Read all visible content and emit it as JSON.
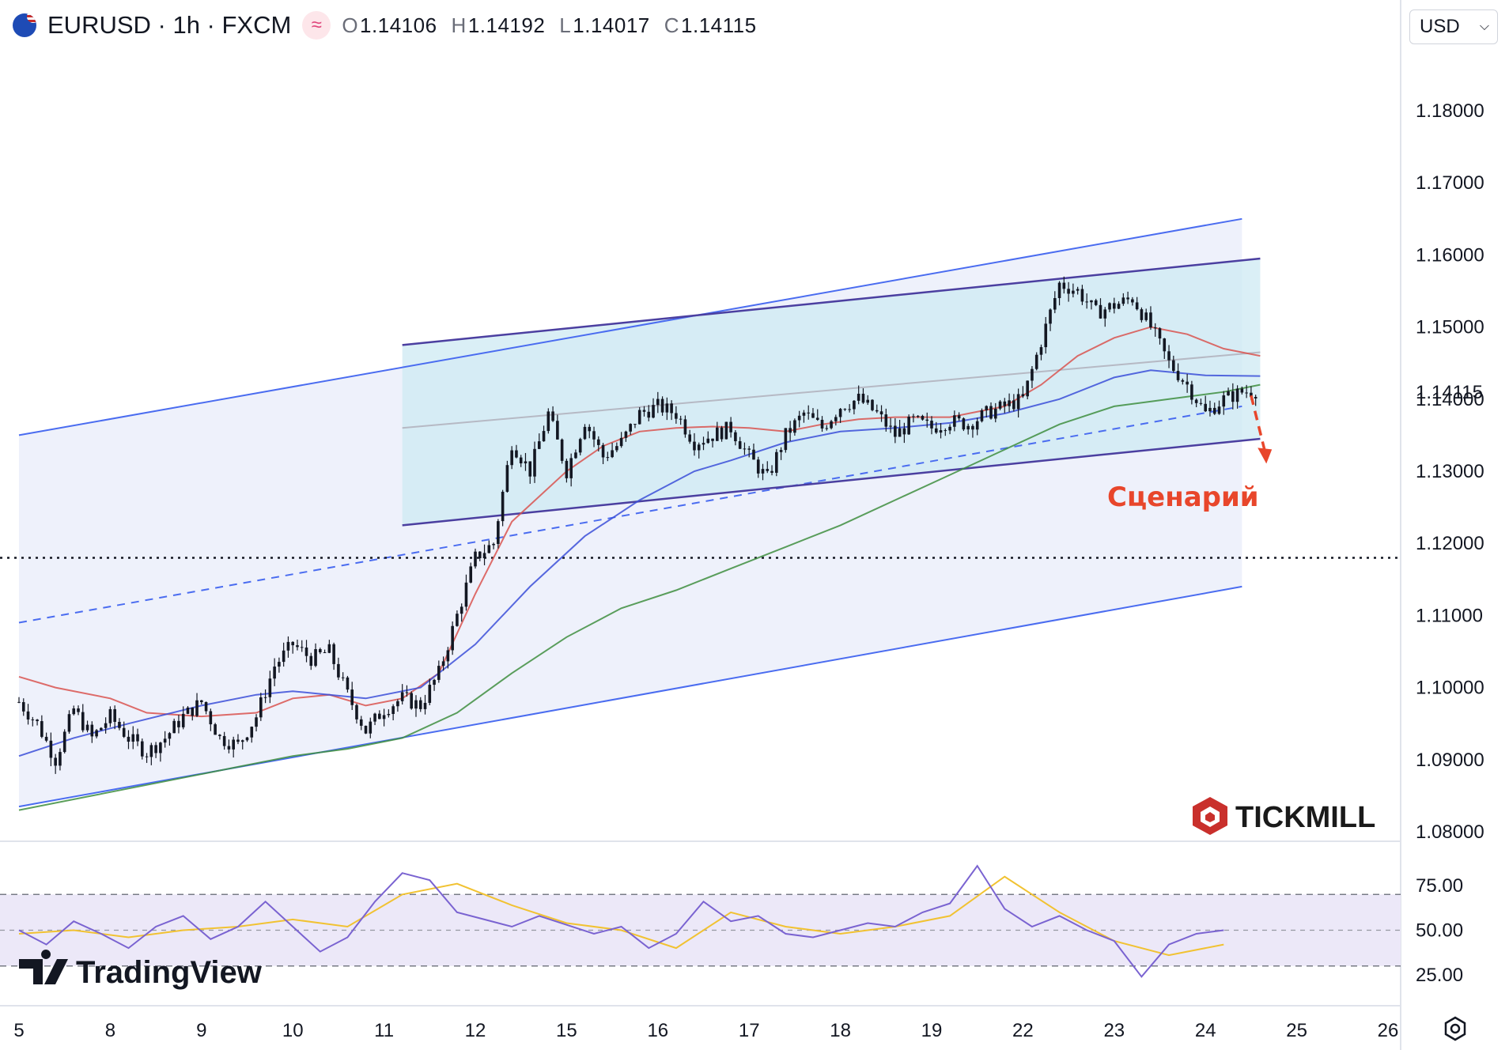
{
  "header": {
    "symbol": "EURUSD · 1h · FXCM",
    "open_label": "O",
    "open": "1.14106",
    "high_label": "H",
    "high": "1.14192",
    "low_label": "L",
    "low": "1.14017",
    "close_label": "C",
    "close": "1.14115",
    "wave_icon": "≈"
  },
  "currency_select": {
    "value": "USD"
  },
  "brands": {
    "tickmill": "TICKMILL",
    "tradingview": "TradingView"
  },
  "annotation": {
    "scenario": "Сценарий"
  },
  "colors": {
    "ma_red": "#d9534f",
    "ma_blue": "#3b4fd8",
    "ma_green": "#3e8e3e",
    "channel": "#4a6cf0",
    "inner_channel": "#4b3fa0",
    "rsi": "#7a63d1",
    "rsi_ma": "#f1c232",
    "arrow": "#e8462b",
    "channel_fill": "#cde9f3"
  },
  "chart_data": [
    {
      "type": "line",
      "description_series": "candlestick price with moving averages",
      "x": [
        "5",
        "8",
        "9",
        "10",
        "11",
        "12",
        "15",
        "16",
        "17",
        "18",
        "19",
        "22",
        "23",
        "24",
        "25",
        "26"
      ],
      "y_axis_ticks": [
        "1.18000",
        "1.17000",
        "1.16000",
        "1.15000",
        "1.14000",
        "1.13000",
        "1.12000",
        "1.11000",
        "1.10000",
        "1.09000",
        "1.08000"
      ],
      "ylim": [
        1.0785,
        1.1945
      ],
      "last_price": "1.14115",
      "horizontal_level": 1.118,
      "close_path": [
        [
          0.0,
          1.098
        ],
        [
          0.2,
          1.095
        ],
        [
          0.4,
          1.09
        ],
        [
          0.6,
          1.097
        ],
        [
          0.8,
          1.093
        ],
        [
          1.0,
          1.096
        ],
        [
          1.2,
          1.093
        ],
        [
          1.4,
          1.091
        ],
        [
          1.6,
          1.093
        ],
        [
          1.8,
          1.096
        ],
        [
          2.0,
          1.098
        ],
        [
          2.2,
          1.093
        ],
        [
          2.4,
          1.092
        ],
        [
          2.6,
          1.096
        ],
        [
          2.8,
          1.103
        ],
        [
          3.0,
          1.106
        ],
        [
          3.2,
          1.104
        ],
        [
          3.4,
          1.105
        ],
        [
          3.6,
          1.099
        ],
        [
          3.8,
          1.094
        ],
        [
          4.0,
          1.097
        ],
        [
          4.2,
          1.0985
        ],
        [
          4.4,
          1.0975
        ],
        [
          4.6,
          1.102
        ],
        [
          4.8,
          1.11
        ],
        [
          5.0,
          1.118
        ],
        [
          5.2,
          1.12
        ],
        [
          5.4,
          1.134
        ],
        [
          5.6,
          1.13
        ],
        [
          5.8,
          1.138
        ],
        [
          6.0,
          1.13
        ],
        [
          6.2,
          1.137
        ],
        [
          6.4,
          1.132
        ],
        [
          6.6,
          1.134
        ],
        [
          6.8,
          1.138
        ],
        [
          7.0,
          1.139
        ],
        [
          7.2,
          1.138
        ],
        [
          7.4,
          1.134
        ],
        [
          7.6,
          1.135
        ],
        [
          7.8,
          1.136
        ],
        [
          8.0,
          1.132
        ],
        [
          8.2,
          1.129
        ],
        [
          8.4,
          1.135
        ],
        [
          8.6,
          1.138
        ],
        [
          8.8,
          1.136
        ],
        [
          9.0,
          1.139
        ],
        [
          9.2,
          1.14
        ],
        [
          9.4,
          1.138
        ],
        [
          9.6,
          1.135
        ],
        [
          9.8,
          1.137
        ],
        [
          10.0,
          1.136
        ],
        [
          10.2,
          1.137
        ],
        [
          10.4,
          1.1365
        ],
        [
          10.6,
          1.138
        ],
        [
          10.8,
          1.139
        ],
        [
          11.0,
          1.14
        ],
        [
          11.2,
          1.148
        ],
        [
          11.4,
          1.156
        ],
        [
          11.6,
          1.155
        ],
        [
          11.8,
          1.152
        ],
        [
          12.0,
          1.153
        ],
        [
          12.2,
          1.154
        ],
        [
          12.4,
          1.15
        ],
        [
          12.6,
          1.145
        ],
        [
          12.8,
          1.142
        ],
        [
          13.0,
          1.138
        ],
        [
          13.2,
          1.14
        ],
        [
          13.4,
          1.141
        ],
        [
          13.6,
          1.1412
        ]
      ],
      "moving_averages": [
        {
          "color": "#d9534f",
          "points": [
            [
              0.0,
              1.1015
            ],
            [
              0.4,
              1.1
            ],
            [
              1.0,
              1.0985
            ],
            [
              1.4,
              1.0965
            ],
            [
              2.0,
              1.096
            ],
            [
              2.6,
              1.0965
            ],
            [
              3.0,
              1.0985
            ],
            [
              3.4,
              1.099
            ],
            [
              3.8,
              1.0975
            ],
            [
              4.2,
              1.0985
            ],
            [
              4.6,
              1.102
            ],
            [
              5.0,
              1.113
            ],
            [
              5.4,
              1.123
            ],
            [
              6.0,
              1.13
            ],
            [
              6.4,
              1.1335
            ],
            [
              6.8,
              1.1355
            ],
            [
              7.2,
              1.136
            ],
            [
              7.6,
              1.1362
            ],
            [
              8.0,
              1.136
            ],
            [
              8.4,
              1.1355
            ],
            [
              8.8,
              1.1365
            ],
            [
              9.2,
              1.1372
            ],
            [
              9.6,
              1.1375
            ],
            [
              10.2,
              1.1375
            ],
            [
              10.8,
              1.139
            ],
            [
              11.2,
              1.142
            ],
            [
              11.6,
              1.146
            ],
            [
              12.0,
              1.1485
            ],
            [
              12.4,
              1.15
            ],
            [
              12.8,
              1.149
            ],
            [
              13.2,
              1.147
            ],
            [
              13.6,
              1.146
            ]
          ]
        },
        {
          "color": "#3b4fd8",
          "points": [
            [
              0.0,
              1.0905
            ],
            [
              0.6,
              1.093
            ],
            [
              1.2,
              1.095
            ],
            [
              2.0,
              1.0975
            ],
            [
              2.6,
              1.099
            ],
            [
              3.0,
              1.0995
            ],
            [
              3.4,
              1.099
            ],
            [
              3.8,
              1.0985
            ],
            [
              4.4,
              1.1
            ],
            [
              5.0,
              1.106
            ],
            [
              5.6,
              1.114
            ],
            [
              6.2,
              1.121
            ],
            [
              6.8,
              1.126
            ],
            [
              7.4,
              1.13
            ],
            [
              7.8,
              1.1315
            ],
            [
              8.4,
              1.134
            ],
            [
              9.0,
              1.1355
            ],
            [
              9.6,
              1.136
            ],
            [
              10.2,
              1.1367
            ],
            [
              10.8,
              1.138
            ],
            [
              11.4,
              1.14
            ],
            [
              12.0,
              1.143
            ],
            [
              12.4,
              1.144
            ],
            [
              13.0,
              1.1433
            ],
            [
              13.6,
              1.1432
            ]
          ]
        },
        {
          "color": "#3e8e3e",
          "points": [
            [
              0.0,
              1.083
            ],
            [
              0.8,
              1.085
            ],
            [
              1.6,
              1.087
            ],
            [
              2.4,
              1.089
            ],
            [
              3.0,
              1.0905
            ],
            [
              3.6,
              1.0915
            ],
            [
              4.2,
              1.093
            ],
            [
              4.8,
              1.0965
            ],
            [
              5.4,
              1.102
            ],
            [
              6.0,
              1.107
            ],
            [
              6.6,
              1.111
            ],
            [
              7.2,
              1.1135
            ],
            [
              7.8,
              1.1165
            ],
            [
              8.4,
              1.1195
            ],
            [
              9.0,
              1.1225
            ],
            [
              9.6,
              1.126
            ],
            [
              10.2,
              1.1295
            ],
            [
              10.8,
              1.133
            ],
            [
              11.4,
              1.1365
            ],
            [
              12.0,
              1.139
            ],
            [
              12.6,
              1.14
            ],
            [
              13.2,
              1.141
            ],
            [
              13.6,
              1.142
            ]
          ]
        }
      ],
      "outer_channel": {
        "upper": [
          [
            0.0,
            1.135
          ],
          [
            13.4,
            1.165
          ]
        ],
        "mid": [
          [
            0.0,
            1.109
          ],
          [
            13.4,
            1.139
          ]
        ],
        "lower": [
          [
            0.0,
            1.0835
          ],
          [
            13.4,
            1.114
          ]
        ]
      },
      "inner_channel": {
        "upper": [
          [
            4.2,
            1.1475
          ],
          [
            13.6,
            1.1595
          ]
        ],
        "mid": [
          [
            4.2,
            1.136
          ],
          [
            13.6,
            1.1465
          ]
        ],
        "lower": [
          [
            4.2,
            1.1225
          ],
          [
            13.6,
            1.1345
          ]
        ]
      },
      "scenario_arrow": [
        [
          13.5,
          1.1405
        ],
        [
          13.65,
          1.1315
        ]
      ]
    },
    {
      "type": "line",
      "description_series": "RSI oscillator",
      "y_axis_ticks": [
        "75.00",
        "50.00",
        "25.00"
      ],
      "ylim": [
        20,
        90
      ],
      "band": [
        30,
        70
      ],
      "rsi": [
        [
          0.0,
          50
        ],
        [
          0.3,
          42
        ],
        [
          0.6,
          55
        ],
        [
          0.9,
          48
        ],
        [
          1.2,
          40
        ],
        [
          1.5,
          52
        ],
        [
          1.8,
          58
        ],
        [
          2.1,
          45
        ],
        [
          2.4,
          52
        ],
        [
          2.7,
          66
        ],
        [
          3.0,
          52
        ],
        [
          3.3,
          38
        ],
        [
          3.6,
          46
        ],
        [
          3.9,
          66
        ],
        [
          4.2,
          82
        ],
        [
          4.5,
          78
        ],
        [
          4.8,
          60
        ],
        [
          5.1,
          56
        ],
        [
          5.4,
          52
        ],
        [
          5.7,
          58
        ],
        [
          6.0,
          53
        ],
        [
          6.3,
          48
        ],
        [
          6.6,
          52
        ],
        [
          6.9,
          40
        ],
        [
          7.2,
          48
        ],
        [
          7.5,
          66
        ],
        [
          7.8,
          55
        ],
        [
          8.1,
          58
        ],
        [
          8.4,
          48
        ],
        [
          8.7,
          46
        ],
        [
          9.0,
          50
        ],
        [
          9.3,
          54
        ],
        [
          9.6,
          52
        ],
        [
          9.9,
          60
        ],
        [
          10.2,
          65
        ],
        [
          10.5,
          86
        ],
        [
          10.8,
          62
        ],
        [
          11.1,
          52
        ],
        [
          11.4,
          58
        ],
        [
          11.7,
          50
        ],
        [
          12.0,
          44
        ],
        [
          12.3,
          24
        ],
        [
          12.6,
          42
        ],
        [
          12.9,
          48
        ],
        [
          13.2,
          50
        ]
      ],
      "rsi_ma": [
        [
          0.0,
          48
        ],
        [
          0.6,
          50
        ],
        [
          1.2,
          46
        ],
        [
          1.8,
          50
        ],
        [
          2.4,
          52
        ],
        [
          3.0,
          56
        ],
        [
          3.6,
          52
        ],
        [
          4.2,
          70
        ],
        [
          4.8,
          76
        ],
        [
          5.4,
          64
        ],
        [
          6.0,
          54
        ],
        [
          6.6,
          50
        ],
        [
          7.2,
          40
        ],
        [
          7.8,
          60
        ],
        [
          8.4,
          52
        ],
        [
          9.0,
          48
        ],
        [
          9.6,
          52
        ],
        [
          10.2,
          58
        ],
        [
          10.8,
          80
        ],
        [
          11.4,
          60
        ],
        [
          12.0,
          44
        ],
        [
          12.6,
          36
        ],
        [
          13.2,
          42
        ]
      ]
    }
  ]
}
